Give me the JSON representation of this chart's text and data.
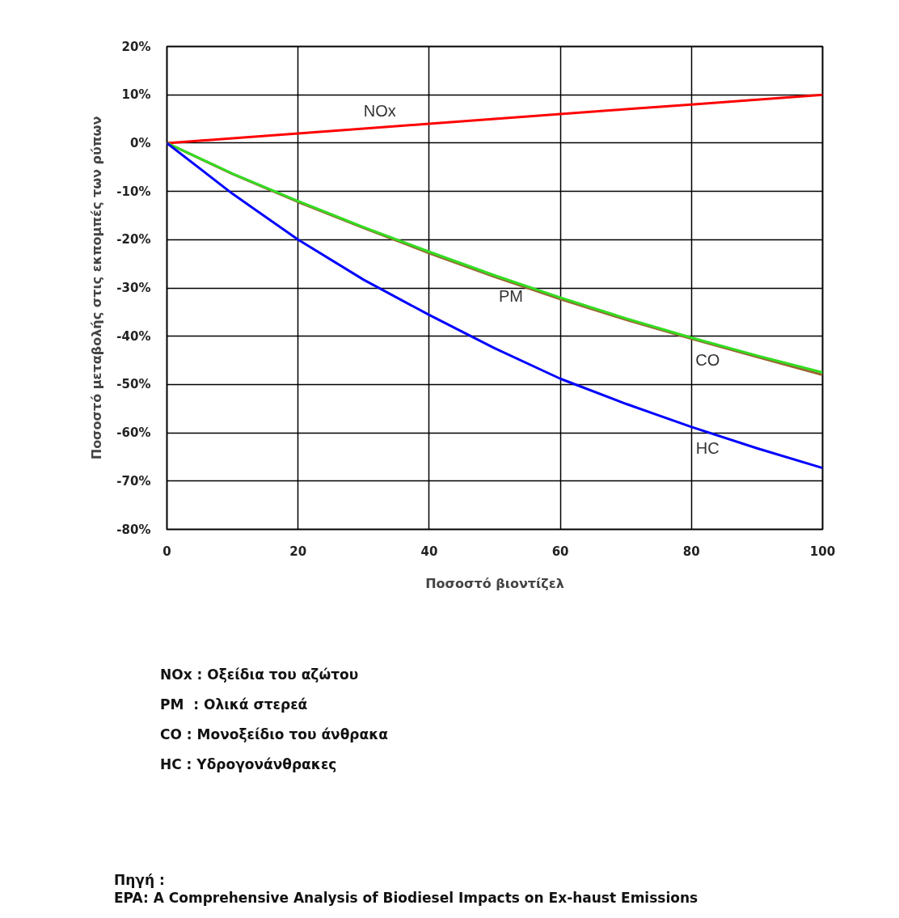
{
  "chart_data": {
    "type": "line",
    "xlabel": "Ποσοστό βιοντίζελ",
    "ylabel": "Ποσοστό μεταβολής στις εκπομπές των ρύπων",
    "x": [
      0,
      10,
      20,
      30,
      40,
      50,
      60,
      70,
      80,
      90,
      100
    ],
    "series": [
      {
        "color": "#ff0000",
        "values": [
          0,
          1,
          2,
          3,
          4,
          5,
          6,
          7,
          8,
          9,
          10
        ]
      },
      {
        "color": "#996633",
        "values": [
          0,
          -6.4,
          -12.2,
          -17.6,
          -22.8,
          -27.7,
          -32.3,
          -36.6,
          -40.5,
          -44.3,
          -48
        ]
      },
      {
        "color": "#33dd22",
        "values": [
          0,
          -6.3,
          -12,
          -17.4,
          -22.5,
          -27.4,
          -32,
          -36.3,
          -40.3,
          -44,
          -47.5
        ]
      },
      {
        "color": "#0000ff",
        "values": [
          0,
          -10.5,
          -20,
          -28.3,
          -35.6,
          -42.5,
          -48.8,
          -54,
          -58.8,
          -63.2,
          -67.3
        ]
      }
    ],
    "xlim": [
      0,
      100
    ],
    "xticks": [
      0,
      20,
      40,
      60,
      80,
      100
    ],
    "ylim": [
      -80,
      20
    ],
    "yticks": [
      {
        "value": -80,
        "label": "-80%"
      },
      {
        "value": -70,
        "label": "-70%"
      },
      {
        "value": -60,
        "label": "-60%"
      },
      {
        "value": -50,
        "label": "-50%"
      },
      {
        "value": -40,
        "label": "-40%"
      },
      {
        "value": -30,
        "label": "-30%"
      },
      {
        "value": -20,
        "label": "-20%"
      },
      {
        "value": -10,
        "label": "-10%"
      },
      {
        "value": 0,
        "label": "0%"
      },
      {
        "value": 10,
        "label": "10%"
      },
      {
        "value": 20,
        "label": "20%"
      }
    ],
    "grid": true,
    "marker": "none",
    "line_style": "solid",
    "annotations": [
      {
        "text": "NOx",
        "x": 30,
        "y": 3
      },
      {
        "text": "PM",
        "x": 50,
        "y": -27.4
      },
      {
        "text": "CO",
        "x": 80,
        "y": -40.5
      },
      {
        "text": "HC",
        "x": 80,
        "y": -58.8
      },
      "NOx : Οξείδια του αζώτου",
      "PM  : Ολικά στερεά",
      "CO : Μονοξείδιο του άνθρακα",
      "HC : Υδρογονάνθρακες",
      "Πηγή :",
      "EPA: A Comprehensive Analysis of Biodiesel Impacts on Ex-haust Emissions"
    ]
  }
}
